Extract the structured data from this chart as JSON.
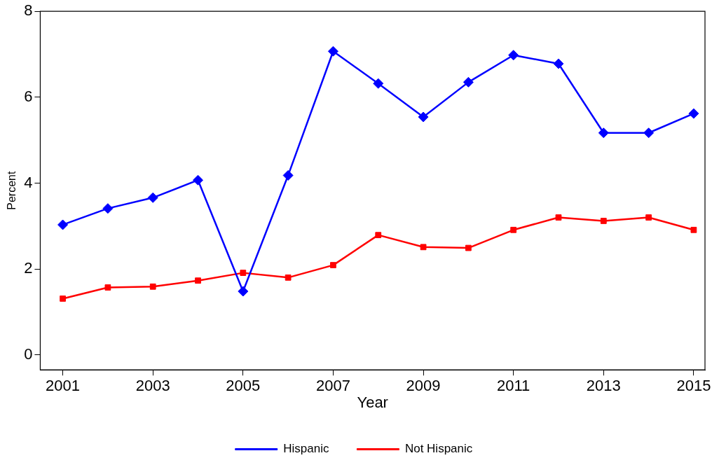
{
  "chart_data": {
    "type": "line",
    "xlabel": "Year",
    "ylabel": "Percent",
    "x": [
      2001,
      2002,
      2003,
      2004,
      2005,
      2006,
      2007,
      2008,
      2009,
      2010,
      2011,
      2012,
      2013,
      2014,
      2015
    ],
    "series": [
      {
        "name": "Hispanic",
        "color": "#0000ff",
        "marker": "diamond",
        "values": [
          3.03,
          3.41,
          3.66,
          4.07,
          1.48,
          4.18,
          7.07,
          6.32,
          5.54,
          6.35,
          6.98,
          6.78,
          5.17,
          5.17,
          5.62
        ]
      },
      {
        "name": "Not Hispanic",
        "color": "#ff0000",
        "marker": "square",
        "values": [
          1.31,
          1.57,
          1.59,
          1.73,
          1.91,
          1.8,
          2.09,
          2.79,
          2.51,
          2.49,
          2.91,
          3.2,
          3.12,
          3.2,
          2.91
        ]
      }
    ],
    "xlim": [
      2000.5,
      2015.25
    ],
    "xticks": [
      2001,
      2003,
      2005,
      2007,
      2009,
      2011,
      2013,
      2015
    ],
    "ylim": [
      -0.35,
      8
    ],
    "yticks": [
      0,
      2,
      4,
      6,
      8
    ],
    "grid": false,
    "legend": "bottom",
    "line_style": "solid"
  }
}
